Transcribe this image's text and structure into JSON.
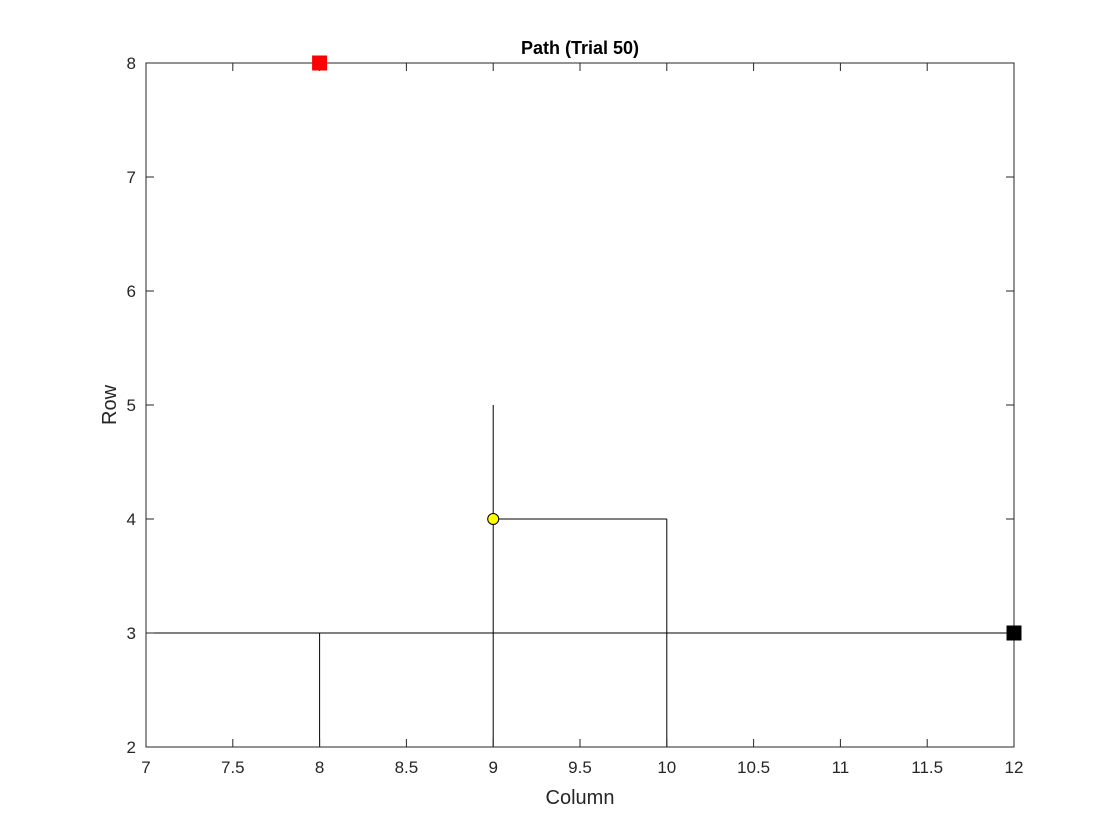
{
  "chart_data": {
    "type": "line",
    "title": "Path (Trial 50)",
    "xlabel": "Column",
    "ylabel": "Row",
    "xlim": [
      7,
      12
    ],
    "ylim": [
      2,
      8
    ],
    "xticks": [
      7,
      7.5,
      8,
      8.5,
      9,
      9.5,
      10,
      10.5,
      11,
      11.5,
      12
    ],
    "xtick_labels": [
      "7",
      "7.5",
      "8",
      "8.5",
      "9",
      "9.5",
      "10",
      "10.5",
      "11",
      "11.5",
      "12"
    ],
    "yticks": [
      2,
      3,
      4,
      5,
      6,
      7,
      8
    ],
    "ytick_labels": [
      "2",
      "3",
      "4",
      "5",
      "6",
      "7",
      "8"
    ],
    "grid": false,
    "path": {
      "color": "#000000",
      "x": [
        9,
        9,
        10,
        10,
        8,
        8,
        7,
        12
      ],
      "y": [
        5,
        2,
        2,
        4,
        2,
        3,
        3,
        3
      ],
      "segments": [
        [
          [
            9,
            5
          ],
          [
            9,
            2
          ]
        ],
        [
          [
            9,
            4
          ],
          [
            10,
            4
          ]
        ],
        [
          [
            10,
            4
          ],
          [
            10,
            2
          ]
        ],
        [
          [
            8,
            2
          ],
          [
            10,
            2
          ]
        ],
        [
          [
            8,
            2
          ],
          [
            8,
            3
          ]
        ],
        [
          [
            7,
            3
          ],
          [
            12,
            3
          ]
        ]
      ]
    },
    "markers": [
      {
        "shape": "square",
        "color": "#ff0000",
        "x": 8,
        "y": 8
      },
      {
        "shape": "square",
        "color": "#000000",
        "x": 12,
        "y": 3
      },
      {
        "shape": "circle",
        "color": "#ffff00",
        "x": 9,
        "y": 4
      }
    ]
  }
}
